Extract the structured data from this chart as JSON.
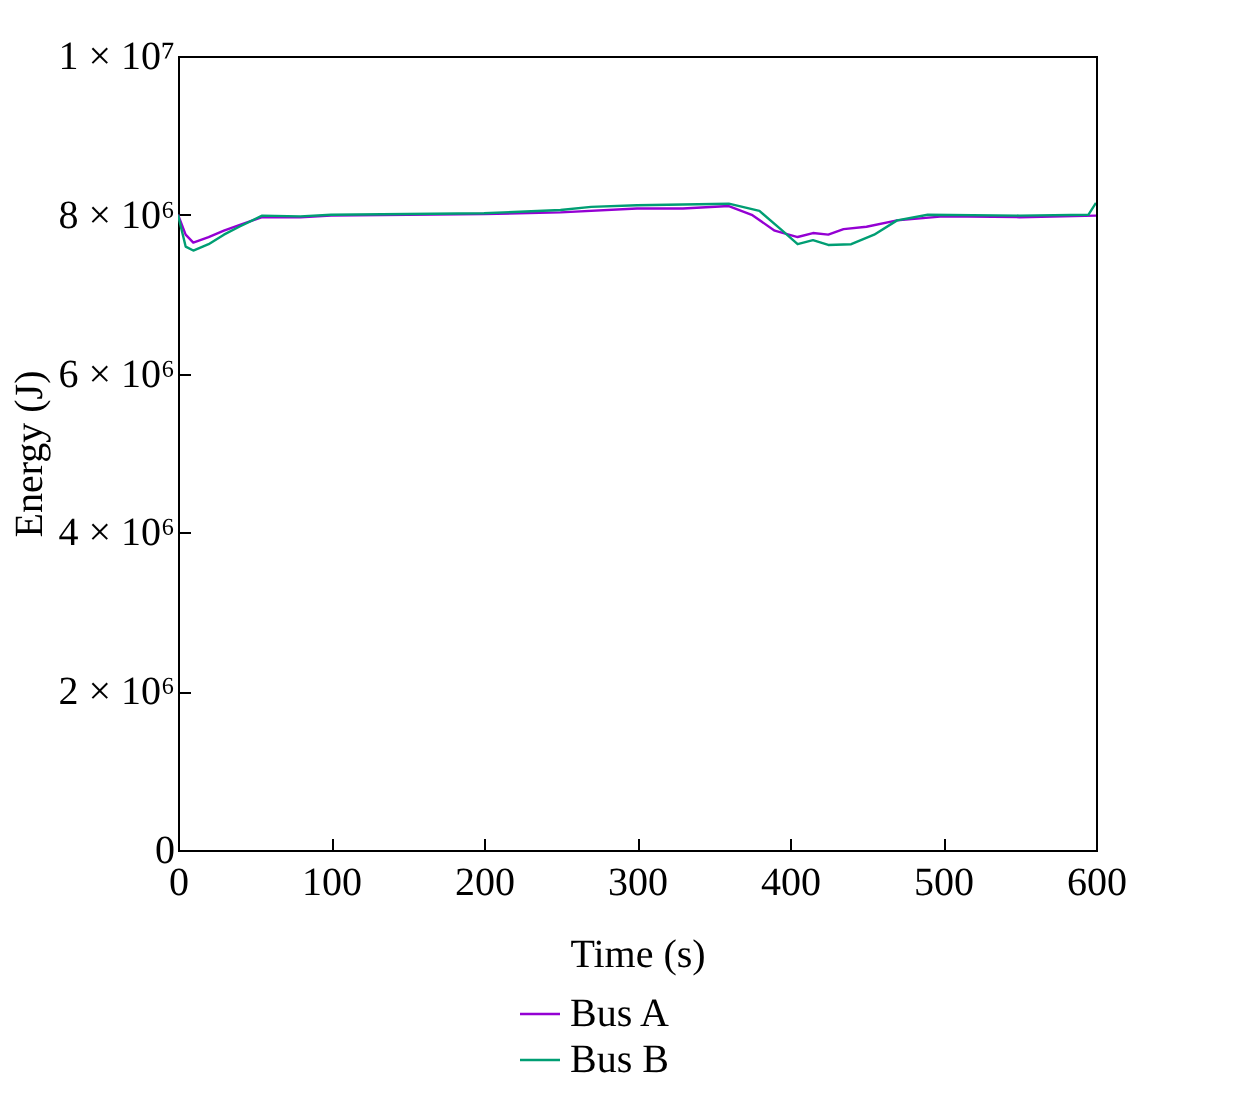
{
  "chart_data": {
    "type": "line",
    "xlabel": "Time (s)",
    "ylabel": "Energy (J)",
    "xlim": [
      0,
      600
    ],
    "xticks": [
      0,
      100,
      200,
      300,
      400,
      500,
      600
    ],
    "ylim": [
      0,
      10000000
    ],
    "yticks": [
      0,
      {
        "value": 2000000,
        "label": "2 × 10⁶"
      },
      {
        "value": 4000000,
        "label": "4 × 10⁶"
      },
      {
        "value": 6000000,
        "label": "6 × 10⁶"
      },
      {
        "value": 8000000,
        "label": "8 × 10⁶"
      },
      {
        "value": 10000000,
        "label": "1 × 10⁷"
      }
    ],
    "grid": false,
    "legend": "bottom",
    "marker": "none",
    "line_style": "solid",
    "series": [
      {
        "name": "Bus A",
        "color": "#9400d3",
        "x": [
          0,
          5,
          10,
          20,
          30,
          40,
          55,
          80,
          100,
          150,
          200,
          250,
          300,
          330,
          360,
          375,
          390,
          405,
          415,
          425,
          435,
          450,
          470,
          500,
          550,
          600
        ],
        "values": [
          8000000,
          7750000,
          7650000,
          7720000,
          7800000,
          7870000,
          7970000,
          7970000,
          7990000,
          8000000,
          8010000,
          8030000,
          8080000,
          8080000,
          8110000,
          8000000,
          7800000,
          7720000,
          7770000,
          7750000,
          7820000,
          7850000,
          7930000,
          7980000,
          7970000,
          7990000
        ]
      },
      {
        "name": "Bus B",
        "color": "#009e73",
        "x": [
          0,
          5,
          10,
          20,
          30,
          40,
          55,
          80,
          100,
          150,
          200,
          250,
          270,
          300,
          330,
          360,
          380,
          395,
          405,
          415,
          425,
          440,
          455,
          470,
          490,
          550,
          595,
          600
        ],
        "values": [
          8000000,
          7600000,
          7550000,
          7630000,
          7750000,
          7850000,
          7990000,
          7980000,
          8000000,
          8010000,
          8020000,
          8060000,
          8100000,
          8120000,
          8130000,
          8140000,
          8050000,
          7800000,
          7630000,
          7680000,
          7620000,
          7630000,
          7750000,
          7930000,
          8000000,
          7990000,
          8000000,
          8150000
        ]
      }
    ]
  }
}
